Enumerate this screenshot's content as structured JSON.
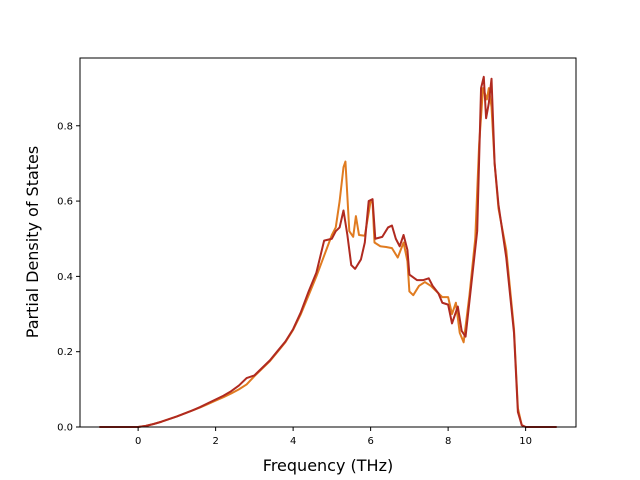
{
  "chart_data": {
    "type": "line",
    "xlabel": "Frequency (THz)",
    "ylabel": "Partial Density of States",
    "xlim": [
      -1.5,
      11.3
    ],
    "ylim": [
      0.0,
      0.98
    ],
    "x_ticks": [
      "0",
      "2",
      "4",
      "6",
      "8",
      "10"
    ],
    "y_ticks": [
      "0.0",
      "0.2",
      "0.4",
      "0.6",
      "0.8"
    ],
    "grid": false,
    "legend": "none",
    "series": [
      {
        "color": "#e07b20",
        "points": [
          [
            -1.0,
            0.0
          ],
          [
            0.0,
            0.0
          ],
          [
            0.2,
            0.003
          ],
          [
            0.4,
            0.008
          ],
          [
            0.6,
            0.014
          ],
          [
            0.8,
            0.021
          ],
          [
            1.0,
            0.028
          ],
          [
            1.2,
            0.036
          ],
          [
            1.4,
            0.044
          ],
          [
            1.6,
            0.052
          ],
          [
            1.8,
            0.061
          ],
          [
            2.0,
            0.07
          ],
          [
            2.2,
            0.079
          ],
          [
            2.4,
            0.089
          ],
          [
            2.6,
            0.1
          ],
          [
            2.8,
            0.113
          ],
          [
            3.0,
            0.135
          ],
          [
            3.2,
            0.155
          ],
          [
            3.4,
            0.175
          ],
          [
            3.6,
            0.2
          ],
          [
            3.8,
            0.225
          ],
          [
            4.0,
            0.258
          ],
          [
            4.2,
            0.3
          ],
          [
            4.4,
            0.35
          ],
          [
            4.6,
            0.4
          ],
          [
            4.8,
            0.455
          ],
          [
            5.0,
            0.51
          ],
          [
            5.1,
            0.53
          ],
          [
            5.2,
            0.6
          ],
          [
            5.3,
            0.69
          ],
          [
            5.35,
            0.705
          ],
          [
            5.45,
            0.52
          ],
          [
            5.55,
            0.505
          ],
          [
            5.62,
            0.56
          ],
          [
            5.7,
            0.51
          ],
          [
            5.85,
            0.508
          ],
          [
            6.0,
            0.6
          ],
          [
            6.05,
            0.595
          ],
          [
            6.1,
            0.49
          ],
          [
            6.25,
            0.48
          ],
          [
            6.4,
            0.478
          ],
          [
            6.55,
            0.475
          ],
          [
            6.7,
            0.45
          ],
          [
            6.85,
            0.49
          ],
          [
            6.95,
            0.44
          ],
          [
            7.0,
            0.36
          ],
          [
            7.1,
            0.35
          ],
          [
            7.25,
            0.375
          ],
          [
            7.4,
            0.385
          ],
          [
            7.55,
            0.375
          ],
          [
            7.7,
            0.36
          ],
          [
            7.85,
            0.345
          ],
          [
            8.0,
            0.345
          ],
          [
            8.1,
            0.3
          ],
          [
            8.2,
            0.33
          ],
          [
            8.3,
            0.25
          ],
          [
            8.4,
            0.225
          ],
          [
            8.55,
            0.35
          ],
          [
            8.7,
            0.5
          ],
          [
            8.8,
            0.75
          ],
          [
            8.9,
            0.9
          ],
          [
            9.0,
            0.87
          ],
          [
            9.05,
            0.9
          ],
          [
            9.12,
            0.85
          ],
          [
            9.2,
            0.7
          ],
          [
            9.3,
            0.58
          ],
          [
            9.5,
            0.47
          ],
          [
            9.7,
            0.26
          ],
          [
            9.8,
            0.05
          ],
          [
            9.9,
            0.005
          ],
          [
            10.0,
            0.0
          ],
          [
            10.8,
            0.0
          ]
        ]
      },
      {
        "color": "#b02a20",
        "points": [
          [
            -1.0,
            0.0
          ],
          [
            0.0,
            0.0
          ],
          [
            0.2,
            0.003
          ],
          [
            0.4,
            0.008
          ],
          [
            0.6,
            0.014
          ],
          [
            0.8,
            0.021
          ],
          [
            1.0,
            0.028
          ],
          [
            1.2,
            0.036
          ],
          [
            1.4,
            0.044
          ],
          [
            1.6,
            0.053
          ],
          [
            1.8,
            0.063
          ],
          [
            2.0,
            0.073
          ],
          [
            2.2,
            0.083
          ],
          [
            2.4,
            0.095
          ],
          [
            2.6,
            0.11
          ],
          [
            2.8,
            0.13
          ],
          [
            3.0,
            0.137
          ],
          [
            3.2,
            0.157
          ],
          [
            3.4,
            0.177
          ],
          [
            3.6,
            0.202
          ],
          [
            3.8,
            0.227
          ],
          [
            4.0,
            0.26
          ],
          [
            4.2,
            0.305
          ],
          [
            4.4,
            0.36
          ],
          [
            4.6,
            0.41
          ],
          [
            4.8,
            0.495
          ],
          [
            5.0,
            0.5
          ],
          [
            5.1,
            0.52
          ],
          [
            5.2,
            0.53
          ],
          [
            5.3,
            0.575
          ],
          [
            5.4,
            0.51
          ],
          [
            5.5,
            0.43
          ],
          [
            5.6,
            0.42
          ],
          [
            5.75,
            0.445
          ],
          [
            5.85,
            0.49
          ],
          [
            5.95,
            0.6
          ],
          [
            6.05,
            0.605
          ],
          [
            6.12,
            0.5
          ],
          [
            6.3,
            0.505
          ],
          [
            6.45,
            0.53
          ],
          [
            6.55,
            0.535
          ],
          [
            6.65,
            0.5
          ],
          [
            6.75,
            0.48
          ],
          [
            6.85,
            0.51
          ],
          [
            6.95,
            0.47
          ],
          [
            7.0,
            0.405
          ],
          [
            7.2,
            0.39
          ],
          [
            7.35,
            0.39
          ],
          [
            7.5,
            0.395
          ],
          [
            7.6,
            0.375
          ],
          [
            7.75,
            0.355
          ],
          [
            7.85,
            0.33
          ],
          [
            8.0,
            0.325
          ],
          [
            8.1,
            0.275
          ],
          [
            8.25,
            0.32
          ],
          [
            8.35,
            0.255
          ],
          [
            8.45,
            0.24
          ],
          [
            8.6,
            0.38
          ],
          [
            8.75,
            0.52
          ],
          [
            8.85,
            0.9
          ],
          [
            8.92,
            0.93
          ],
          [
            8.98,
            0.82
          ],
          [
            9.05,
            0.86
          ],
          [
            9.12,
            0.925
          ],
          [
            9.2,
            0.7
          ],
          [
            9.3,
            0.59
          ],
          [
            9.5,
            0.45
          ],
          [
            9.7,
            0.25
          ],
          [
            9.8,
            0.04
          ],
          [
            9.9,
            0.005
          ],
          [
            10.0,
            0.0
          ],
          [
            10.8,
            0.0
          ]
        ]
      }
    ]
  }
}
